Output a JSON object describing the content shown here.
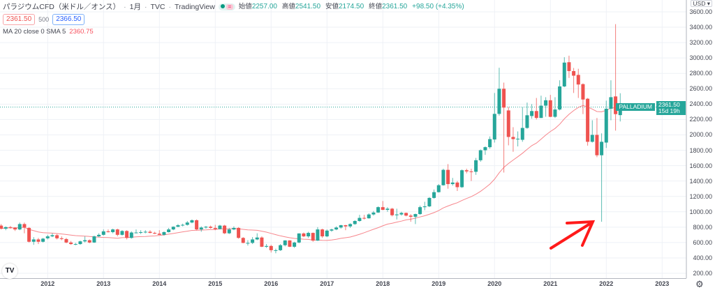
{
  "legend": {
    "title": "パラジウムCFD（米ドル／オンス）",
    "interval": "1月",
    "exchange": "TVC",
    "source": "TradingView",
    "open_label": "始値",
    "open": "2257.00",
    "high_label": "高値",
    "high": "2541.50",
    "low_label": "安値",
    "low": "2174.50",
    "close_label": "終値",
    "close": "2361.50",
    "change": "+98.50 (+4.35%)",
    "sell_price": "2361.50",
    "quantity": "500",
    "buy_price": "2366.50",
    "ma_label": "MA 20 close 0 SMA 5",
    "ma_value": "2360.75"
  },
  "axis": {
    "currency": "USD ▾",
    "symbol_tag": "PALLADIUM",
    "last_price": "2361.50",
    "countdown": "15d 19h"
  },
  "colors": {
    "up": "#26a69a",
    "down": "#ef5350",
    "ma": "#f7868c",
    "arrow": "#ff0000"
  },
  "chart_data": {
    "type": "candlestick",
    "title": "パラジウムCFD（米ドル／オンス） 1月 TVC",
    "interval": "monthly",
    "start": "2011-03",
    "ylim": [
      200,
      3600
    ],
    "y_ticks": [
      "3600.00",
      "3400.00",
      "3200.00",
      "3000.00",
      "2800.00",
      "2600.00",
      "2400.00",
      "2200.00",
      "2000.00",
      "1800.00",
      "1600.00",
      "1400.00",
      "1200.00",
      "1000.00",
      "800.00",
      "600.00",
      "400.00",
      "200.00"
    ],
    "x_ticks": [
      "2012",
      "2013",
      "2014",
      "2015",
      "2016",
      "2017",
      "2018",
      "2019",
      "2020",
      "2021",
      "2022",
      "2023"
    ],
    "ma_period": 20,
    "last_price": 2361.5,
    "candles_ohlc": [
      [
        820,
        840,
        770,
        780
      ],
      [
        780,
        810,
        760,
        800
      ],
      [
        800,
        815,
        780,
        795
      ],
      [
        795,
        800,
        750,
        770
      ],
      [
        770,
        860,
        760,
        840
      ],
      [
        840,
        860,
        720,
        795
      ],
      [
        790,
        800,
        600,
        610
      ],
      [
        610,
        670,
        570,
        640
      ],
      [
        640,
        660,
        580,
        610
      ],
      [
        610,
        660,
        600,
        650
      ],
      [
        655,
        700,
        640,
        680
      ],
      [
        680,
        720,
        670,
        695
      ],
      [
        695,
        710,
        640,
        655
      ],
      [
        655,
        680,
        630,
        645
      ],
      [
        645,
        660,
        590,
        600
      ],
      [
        600,
        620,
        570,
        580
      ],
      [
        580,
        595,
        565,
        580
      ],
      [
        580,
        625,
        570,
        615
      ],
      [
        615,
        680,
        600,
        630
      ],
      [
        630,
        640,
        590,
        600
      ],
      [
        600,
        690,
        595,
        680
      ],
      [
        680,
        720,
        670,
        700
      ],
      [
        700,
        770,
        690,
        745
      ],
      [
        745,
        770,
        730,
        735
      ],
      [
        735,
        780,
        720,
        770
      ],
      [
        770,
        780,
        680,
        700
      ],
      [
        700,
        760,
        690,
        750
      ],
      [
        750,
        760,
        640,
        660
      ],
      [
        660,
        745,
        650,
        730
      ],
      [
        730,
        770,
        720,
        730
      ],
      [
        730,
        760,
        710,
        735
      ],
      [
        735,
        760,
        720,
        740
      ],
      [
        740,
        760,
        720,
        725
      ],
      [
        725,
        740,
        710,
        715
      ],
      [
        715,
        760,
        700,
        700
      ],
      [
        700,
        745,
        690,
        735
      ],
      [
        735,
        790,
        730,
        770
      ],
      [
        770,
        810,
        760,
        805
      ],
      [
        805,
        840,
        800,
        825
      ],
      [
        825,
        845,
        810,
        830
      ],
      [
        830,
        880,
        820,
        860
      ],
      [
        860,
        900,
        850,
        890
      ],
      [
        890,
        900,
        760,
        770
      ],
      [
        770,
        810,
        740,
        795
      ],
      [
        795,
        815,
        780,
        805
      ],
      [
        805,
        820,
        780,
        790
      ],
      [
        790,
        830,
        760,
        775
      ],
      [
        775,
        830,
        770,
        820
      ],
      [
        820,
        830,
        710,
        720
      ],
      [
        720,
        790,
        710,
        770
      ],
      [
        770,
        810,
        760,
        790
      ],
      [
        790,
        800,
        650,
        660
      ],
      [
        660,
        670,
        590,
        595
      ],
      [
        595,
        630,
        560,
        595
      ],
      [
        595,
        670,
        580,
        640
      ],
      [
        640,
        720,
        630,
        665
      ],
      [
        665,
        680,
        540,
        545
      ],
      [
        545,
        580,
        530,
        555
      ],
      [
        555,
        570,
        470,
        500
      ],
      [
        500,
        520,
        460,
        500
      ],
      [
        500,
        580,
        490,
        565
      ],
      [
        565,
        630,
        550,
        627
      ],
      [
        627,
        630,
        540,
        545
      ],
      [
        545,
        610,
        530,
        600
      ],
      [
        600,
        720,
        590,
        718
      ],
      [
        718,
        730,
        670,
        680
      ],
      [
        680,
        740,
        660,
        725
      ],
      [
        725,
        730,
        610,
        625
      ],
      [
        625,
        800,
        620,
        770
      ],
      [
        770,
        780,
        660,
        680
      ],
      [
        680,
        770,
        670,
        755
      ],
      [
        755,
        780,
        740,
        770
      ],
      [
        770,
        810,
        760,
        795
      ],
      [
        795,
        830,
        780,
        825
      ],
      [
        825,
        830,
        760,
        810
      ],
      [
        810,
        850,
        790,
        840
      ],
      [
        840,
        890,
        830,
        880
      ],
      [
        880,
        960,
        870,
        920
      ],
      [
        920,
        960,
        900,
        915
      ],
      [
        915,
        980,
        910,
        965
      ],
      [
        965,
        1010,
        950,
        990
      ],
      [
        990,
        1070,
        985,
        1060
      ],
      [
        1060,
        1140,
        1020,
        1025
      ],
      [
        1025,
        1060,
        1000,
        1040
      ],
      [
        1040,
        1050,
        940,
        955
      ],
      [
        955,
        1040,
        900,
        965
      ],
      [
        965,
        1000,
        950,
        985
      ],
      [
        985,
        990,
        940,
        950
      ],
      [
        950,
        970,
        870,
        935
      ],
      [
        935,
        975,
        840,
        970
      ],
      [
        970,
        1080,
        960,
        1060
      ],
      [
        1060,
        1130,
        1020,
        1070
      ],
      [
        1070,
        1190,
        1060,
        1180
      ],
      [
        1180,
        1290,
        1170,
        1255
      ],
      [
        1255,
        1360,
        1250,
        1345
      ],
      [
        1345,
        1560,
        1340,
        1545
      ],
      [
        1545,
        1620,
        1300,
        1360
      ],
      [
        1360,
        1440,
        1340,
        1380
      ],
      [
        1380,
        1400,
        1270,
        1320
      ],
      [
        1320,
        1550,
        1310,
        1540
      ],
      [
        1540,
        1560,
        1500,
        1525
      ],
      [
        1525,
        1560,
        1400,
        1520
      ],
      [
        1520,
        1700,
        1480,
        1670
      ],
      [
        1670,
        1810,
        1650,
        1800
      ],
      [
        1800,
        1850,
        1740,
        1840
      ],
      [
        1840,
        1980,
        1820,
        1945
      ],
      [
        1940,
        2545,
        1900,
        2273
      ],
      [
        2273,
        2873,
        2250,
        2600
      ],
      [
        2600,
        2680,
        1510,
        2355
      ],
      [
        2318,
        2364,
        1864,
        1973
      ],
      [
        1973,
        2100,
        1780,
        1945
      ],
      [
        1945,
        2045,
        1850,
        1950
      ],
      [
        1936,
        2360,
        1910,
        2090
      ],
      [
        2090,
        2420,
        2080,
        2255
      ],
      [
        2245,
        2400,
        2210,
        2310
      ],
      [
        2310,
        2480,
        2200,
        2220
      ],
      [
        2220,
        2510,
        2220,
        2380
      ],
      [
        2380,
        2490,
        2236,
        2450
      ],
      [
        2450,
        2520,
        2230,
        2235
      ],
      [
        2235,
        2490,
        2220,
        2330
      ],
      [
        2330,
        2710,
        2318,
        2630
      ],
      [
        2630,
        3010,
        2620,
        2940
      ],
      [
        2945,
        3030,
        2740,
        2830
      ],
      [
        2830,
        2870,
        2545,
        2770
      ],
      [
        2780,
        2860,
        2480,
        2655
      ],
      [
        2660,
        2670,
        2270,
        2460
      ],
      [
        2470,
        2480,
        1860,
        1910
      ],
      [
        1910,
        2190,
        1900,
        2000
      ],
      [
        2000,
        2220,
        1710,
        1735
      ],
      [
        1735,
        2020,
        870,
        1910
      ],
      [
        1900,
        2445,
        1830,
        2340
      ],
      [
        2340,
        2710,
        2190,
        2490
      ],
      [
        2500,
        3440,
        2055,
        2270
      ],
      [
        2257,
        2541.5,
        2174.5,
        2361.5
      ]
    ]
  }
}
